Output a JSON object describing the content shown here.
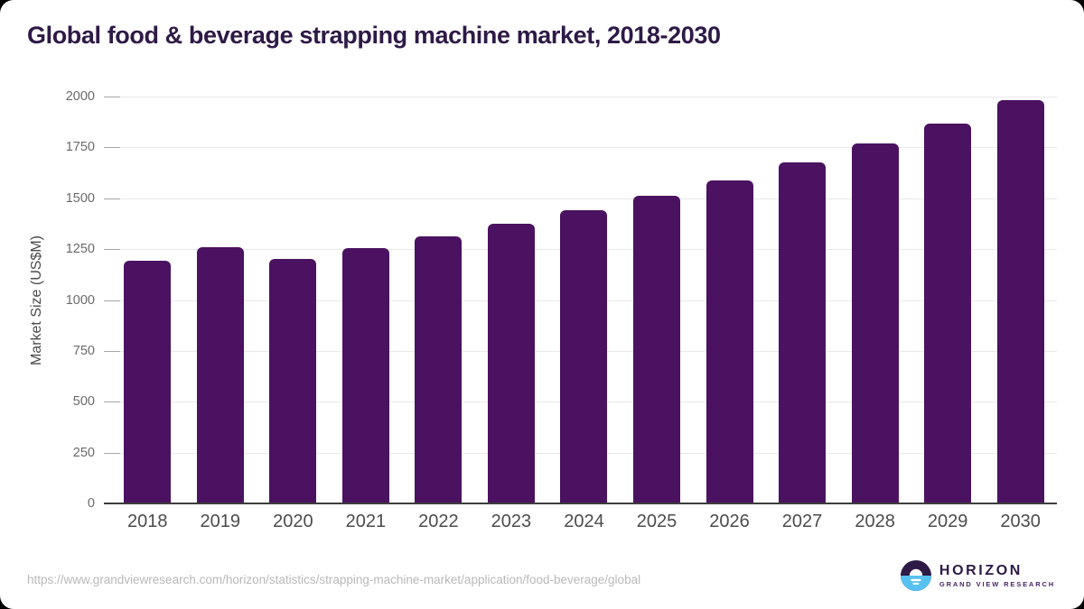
{
  "page": {
    "title": "Global food & beverage strapping machine market, 2018-2030",
    "source_url": "https://www.grandviewresearch.com/horizon/statistics/strapping-machine-market/application/food-beverage/global"
  },
  "logo": {
    "name": "HORIZON",
    "subtitle": "GRAND VIEW RESEARCH"
  },
  "colors": {
    "title": "#2e1a47",
    "bar": "#4a1260",
    "gridline": "#e9e9e9",
    "axis_line": "#3d3d3d",
    "logo_dark_purple": "#2e1a47",
    "logo_light_blue": "#57c1ef"
  },
  "chart_data": {
    "type": "bar",
    "title": "Global food & beverage strapping machine market, 2018-2030",
    "categories": [
      "2018",
      "2019",
      "2020",
      "2021",
      "2022",
      "2023",
      "2024",
      "2025",
      "2026",
      "2027",
      "2028",
      "2029",
      "2030"
    ],
    "values": [
      1193,
      1261,
      1204,
      1256,
      1311,
      1374,
      1441,
      1512,
      1589,
      1676,
      1768,
      1869,
      1983
    ],
    "xlabel": "",
    "ylabel": "Market Size (US$M)",
    "ylim": [
      0,
      2000
    ],
    "yticks": [
      0,
      250,
      500,
      750,
      1000,
      1250,
      1500,
      1750,
      2000
    ],
    "grid": "horizontal",
    "legend": false,
    "bar_color": "#4a1260"
  }
}
